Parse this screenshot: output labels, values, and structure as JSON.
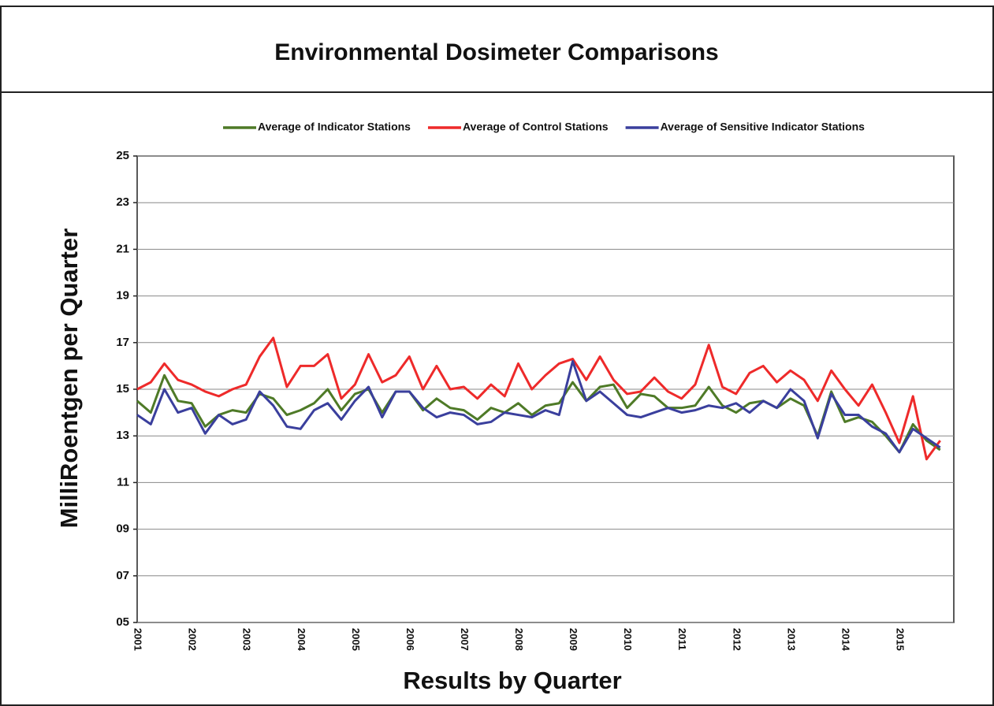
{
  "chart_data": {
    "type": "line",
    "title": "Environmental Dosimeter Comparisons",
    "xlabel": "Results by Quarter",
    "ylabel": "MilliRoentgen per Quarter",
    "categories": [
      "2001",
      null,
      null,
      null,
      "2002",
      null,
      null,
      null,
      "2003",
      null,
      null,
      null,
      "2004",
      null,
      null,
      null,
      "2005",
      null,
      null,
      null,
      "2006",
      null,
      null,
      null,
      "2007",
      null,
      null,
      null,
      "2008",
      null,
      null,
      null,
      "2009",
      null,
      null,
      null,
      "2010",
      null,
      null,
      null,
      "2011",
      null,
      null,
      null,
      "2012",
      null,
      null,
      null,
      "2013",
      null,
      null,
      null,
      "2014",
      null,
      null,
      null,
      "2015",
      null,
      null,
      null
    ],
    "ylim": [
      5,
      25
    ],
    "yticks": [
      {
        "value": 5,
        "label": "05"
      },
      {
        "value": 7,
        "label": "07"
      },
      {
        "value": 9,
        "label": "09"
      },
      11,
      13,
      15,
      17,
      19,
      21,
      23,
      25
    ],
    "grid": true,
    "legend": "top",
    "series": [
      {
        "name": "Average of Indicator Stations",
        "color": "#4e7a27",
        "values": [
          14.5,
          14.0,
          15.6,
          14.5,
          14.4,
          13.4,
          13.9,
          14.1,
          14.0,
          14.8,
          14.6,
          13.9,
          14.1,
          14.4,
          15.0,
          14.1,
          14.8,
          15.0,
          14.0,
          14.9,
          14.9,
          14.1,
          14.6,
          14.2,
          14.1,
          13.7,
          14.2,
          14.0,
          14.4,
          13.9,
          14.3,
          14.4,
          15.3,
          14.5,
          15.1,
          15.2,
          14.2,
          14.8,
          14.7,
          14.2,
          14.2,
          14.3,
          15.1,
          14.3,
          14.0,
          14.4,
          14.5,
          14.2,
          14.6,
          14.3,
          13.0,
          14.9,
          13.6,
          13.8,
          13.6,
          13.0,
          12.3,
          13.5,
          12.8,
          12.4
        ]
      },
      {
        "name": "Average of Control Stations",
        "color": "#ee2a2a",
        "values": [
          15.0,
          15.3,
          16.1,
          15.4,
          15.2,
          14.9,
          14.7,
          15.0,
          15.2,
          16.4,
          17.2,
          15.1,
          16.0,
          16.0,
          16.5,
          14.6,
          15.2,
          16.5,
          15.3,
          15.6,
          16.4,
          15.0,
          16.0,
          15.0,
          15.1,
          14.6,
          15.2,
          14.7,
          16.1,
          15.0,
          15.6,
          16.1,
          16.3,
          15.4,
          16.4,
          15.4,
          14.8,
          14.9,
          15.5,
          14.9,
          14.6,
          15.2,
          16.9,
          15.1,
          14.8,
          15.7,
          16.0,
          15.3,
          15.8,
          15.4,
          14.5,
          15.8,
          15.0,
          14.3,
          15.2,
          14.0,
          12.7,
          14.7,
          12.0,
          12.8
        ]
      },
      {
        "name": "Average of Sensitive Indicator Stations",
        "color": "#3a3f9d",
        "values": [
          13.9,
          13.5,
          15.0,
          14.0,
          14.2,
          13.1,
          13.9,
          13.5,
          13.7,
          14.9,
          14.3,
          13.4,
          13.3,
          14.1,
          14.4,
          13.7,
          14.5,
          15.1,
          13.8,
          14.9,
          14.9,
          14.2,
          13.8,
          14.0,
          13.9,
          13.5,
          13.6,
          14.0,
          13.9,
          13.8,
          14.1,
          13.9,
          16.2,
          14.5,
          14.9,
          14.4,
          13.9,
          13.8,
          14.0,
          14.2,
          14.0,
          14.1,
          14.3,
          14.2,
          14.4,
          14.0,
          14.5,
          14.2,
          15.0,
          14.5,
          12.9,
          14.8,
          13.9,
          13.9,
          13.4,
          13.1,
          12.3,
          13.3,
          12.9,
          12.5
        ]
      }
    ]
  }
}
